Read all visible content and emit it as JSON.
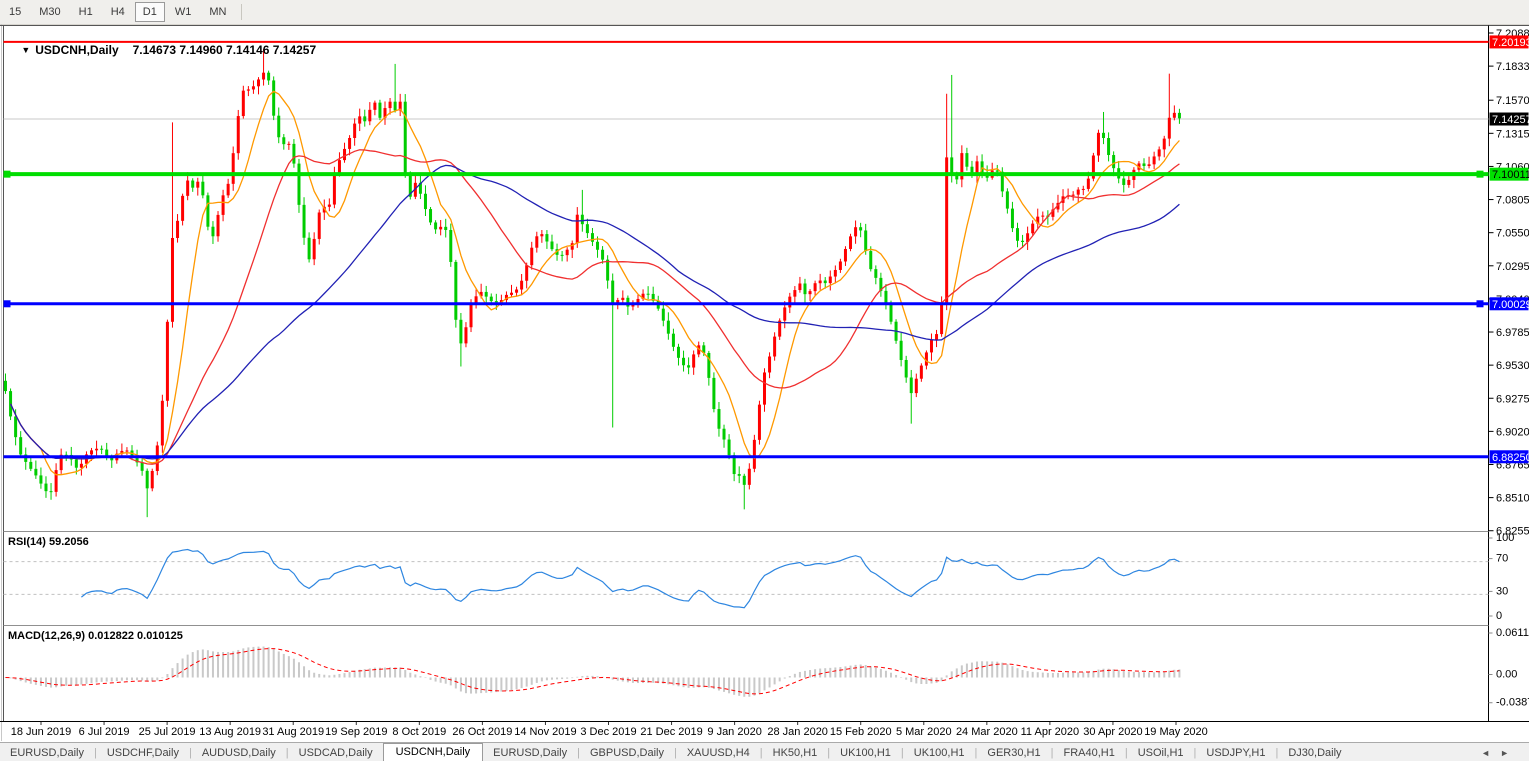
{
  "toolbar": {
    "timeframes": [
      "15",
      "M30",
      "H1",
      "H4",
      "D1",
      "W1",
      "MN"
    ],
    "active": "D1"
  },
  "chart": {
    "dropdown_icon": "▼",
    "symbol": "USDCNH,Daily",
    "ohlc_text": "7.14673 7.14960 7.14146 7.14257"
  },
  "rsi_panel": {
    "title": "RSI(14) 59.2056"
  },
  "macd_panel": {
    "title": "MACD(12,26,9) 0.012822 0.010125"
  },
  "chart_data": {
    "type": "candlestick",
    "symbol": "USDCNH",
    "timeframe": "Daily",
    "current_bar": {
      "open": 7.14673,
      "high": 7.1496,
      "low": 7.14146,
      "close": 7.14257
    },
    "colors": {
      "up": "#ff0000",
      "down": "#00cc00",
      "ma_fast": "#ff9900",
      "ma_mid": "#f03030",
      "ma_slow": "#2121b4",
      "rsi": "#2e86e0",
      "macd_hist": "#c9c9c9",
      "macd_signal": "#ff0000",
      "price_line": "#c8c8c8",
      "level_dash": "#c0c0c0"
    },
    "y_axis": {
      "ticks": [
        {
          "label": "7.20880",
          "value": 7.2088
        },
        {
          "label": "7.18330",
          "value": 7.1833
        },
        {
          "label": "7.15705",
          "value": 7.15705
        },
        {
          "label": "7.13155",
          "value": 7.13155
        },
        {
          "label": "7.10605",
          "value": 7.10605
        },
        {
          "label": "7.08055",
          "value": 7.08055
        },
        {
          "label": "7.05505",
          "value": 7.05505
        },
        {
          "label": "7.02955",
          "value": 7.02955
        },
        {
          "label": "7.00405",
          "value": 7.00405
        },
        {
          "label": "6.97855",
          "value": 6.97855
        },
        {
          "label": "6.95305",
          "value": 6.95305
        },
        {
          "label": "6.92755",
          "value": 6.92755
        },
        {
          "label": "6.90205",
          "value": 6.90205
        },
        {
          "label": "6.87655",
          "value": 6.87655
        },
        {
          "label": "6.85105",
          "value": 6.85105
        },
        {
          "label": "6.82555",
          "value": 6.82555
        }
      ]
    },
    "x_axis": {
      "ticks": [
        "18 Jun 2019",
        "6 Jul 2019",
        "25 Jul 2019",
        "13 Aug 2019",
        "31 Aug 2019",
        "19 Sep 2019",
        "8 Oct 2019",
        "26 Oct 2019",
        "14 Nov 2019",
        "3 Dec 2019",
        "21 Dec 2019",
        "9 Jan 2020",
        "28 Jan 2020",
        "15 Feb 2020",
        "5 Mar 2020",
        "24 Mar 2020",
        "11 Apr 2020",
        "30 Apr 2020",
        "19 May 2020"
      ]
    },
    "price_badges": [
      {
        "label": "7.20193",
        "value": 7.20193,
        "bg": "#ff0000",
        "fg": "#ffffff"
      },
      {
        "label": "7.14257",
        "value": 7.14257,
        "bg": "#000000",
        "fg": "#ffffff"
      },
      {
        "label": "7.10011",
        "value": 7.10011,
        "bg": "#00e000",
        "fg": "#000000"
      },
      {
        "label": "7.00029",
        "value": 7.00029,
        "bg": "#0000ff",
        "fg": "#ffffff"
      },
      {
        "label": "6.88250",
        "value": 6.8825,
        "bg": "#0000ff",
        "fg": "#ffffff"
      }
    ],
    "h_lines": [
      {
        "name": "resistance-line",
        "value": 7.20193,
        "color": "#ff0000",
        "width": 2,
        "handles": false
      },
      {
        "name": "support-line-green",
        "value": 7.10011,
        "color": "#00dd00",
        "width": 4,
        "handles": true
      },
      {
        "name": "support-line-blue-upper",
        "value": 7.00029,
        "color": "#0000ff",
        "width": 3,
        "handles": true
      },
      {
        "name": "support-line-blue-lower",
        "value": 6.8825,
        "color": "#0000ff",
        "width": 3,
        "handles": false
      }
    ],
    "last_price_line": 7.14257,
    "moving_averages": [
      {
        "name": "ma-fast",
        "period": 8
      },
      {
        "name": "ma-mid",
        "period": 25
      },
      {
        "name": "ma-slow",
        "period": 55
      }
    ],
    "rsi": {
      "period": 14,
      "value": 59.2056,
      "levels": [
        70,
        30
      ],
      "axis_labels": [
        {
          "label": "100",
          "value": 100
        },
        {
          "label": "70",
          "value": 70
        },
        {
          "label": "30",
          "value": 30
        },
        {
          "label": "0",
          "value": 0
        }
      ]
    },
    "macd": {
      "fast": 12,
      "slow": 26,
      "signal": 9,
      "value": 0.012822,
      "signal_value": 0.010125,
      "axis_labels": [
        {
          "label": "0.061119",
          "value": 0.061119
        },
        {
          "label": "0.00",
          "value": 0
        },
        {
          "label": "-0.03877",
          "value": -0.03877
        }
      ]
    },
    "price_path_anchors": [
      [
        5,
        6.935
      ],
      [
        12,
        6.908
      ],
      [
        20,
        6.885
      ],
      [
        28,
        6.876
      ],
      [
        36,
        6.868
      ],
      [
        44,
        6.858
      ],
      [
        50,
        6.852
      ],
      [
        56,
        6.872
      ],
      [
        62,
        6.886
      ],
      [
        70,
        6.882
      ],
      [
        78,
        6.872
      ],
      [
        86,
        6.884
      ],
      [
        94,
        6.889
      ],
      [
        102,
        6.888
      ],
      [
        110,
        6.878
      ],
      [
        118,
        6.886
      ],
      [
        126,
        6.888
      ],
      [
        134,
        6.882
      ],
      [
        142,
        6.872
      ],
      [
        148,
        6.856
      ],
      [
        154,
        6.878
      ],
      [
        160,
        6.902
      ],
      [
        166,
        6.962
      ],
      [
        171,
        7.048
      ],
      [
        176,
        7.058
      ],
      [
        182,
        7.082
      ],
      [
        188,
        7.096
      ],
      [
        194,
        7.088
      ],
      [
        200,
        7.098
      ],
      [
        206,
        7.068
      ],
      [
        211,
        7.046
      ],
      [
        216,
        7.062
      ],
      [
        222,
        7.082
      ],
      [
        228,
        7.092
      ],
      [
        234,
        7.12
      ],
      [
        240,
        7.155
      ],
      [
        246,
        7.172
      ],
      [
        251,
        7.158
      ],
      [
        256,
        7.178
      ],
      [
        261,
        7.168
      ],
      [
        266,
        7.188
      ],
      [
        271,
        7.158
      ],
      [
        276,
        7.134
      ],
      [
        282,
        7.122
      ],
      [
        288,
        7.126
      ],
      [
        294,
        7.108
      ],
      [
        300,
        7.07
      ],
      [
        306,
        7.042
      ],
      [
        311,
        7.03
      ],
      [
        316,
        7.062
      ],
      [
        322,
        7.078
      ],
      [
        328,
        7.07
      ],
      [
        334,
        7.1
      ],
      [
        340,
        7.112
      ],
      [
        346,
        7.122
      ],
      [
        352,
        7.132
      ],
      [
        358,
        7.148
      ],
      [
        363,
        7.138
      ],
      [
        368,
        7.146
      ],
      [
        374,
        7.158
      ],
      [
        379,
        7.142
      ],
      [
        384,
        7.15
      ],
      [
        390,
        7.156
      ],
      [
        395,
        7.149
      ],
      [
        400,
        7.158
      ],
      [
        405,
        7.1
      ],
      [
        410,
        7.082
      ],
      [
        415,
        7.094
      ],
      [
        420,
        7.086
      ],
      [
        426,
        7.072
      ],
      [
        432,
        7.06
      ],
      [
        438,
        7.056
      ],
      [
        444,
        7.064
      ],
      [
        450,
        7.04
      ],
      [
        455,
        6.992
      ],
      [
        460,
        6.968
      ],
      [
        465,
        6.978
      ],
      [
        470,
        7.0
      ],
      [
        476,
        7.006
      ],
      [
        482,
        7.01
      ],
      [
        488,
        7.004
      ],
      [
        494,
        7.001
      ],
      [
        500,
        7.002
      ],
      [
        506,
        7.007
      ],
      [
        512,
        7.009
      ],
      [
        518,
        7.012
      ],
      [
        524,
        7.022
      ],
      [
        530,
        7.04
      ],
      [
        536,
        7.052
      ],
      [
        542,
        7.054
      ],
      [
        548,
        7.047
      ],
      [
        554,
        7.04
      ],
      [
        560,
        7.036
      ],
      [
        566,
        7.041
      ],
      [
        572,
        7.046
      ],
      [
        578,
        7.072
      ],
      [
        583,
        7.06
      ],
      [
        588,
        7.054
      ],
      [
        594,
        7.046
      ],
      [
        600,
        7.039
      ],
      [
        606,
        7.028
      ],
      [
        611,
        6.998
      ],
      [
        616,
        7.002
      ],
      [
        622,
        7.006
      ],
      [
        628,
        6.998
      ],
      [
        634,
        7.0
      ],
      [
        640,
        7.006
      ],
      [
        646,
        7.01
      ],
      [
        652,
        7.004
      ],
      [
        658,
        6.997
      ],
      [
        664,
        6.986
      ],
      [
        670,
        6.974
      ],
      [
        676,
        6.962
      ],
      [
        682,
        6.954
      ],
      [
        688,
        6.95
      ],
      [
        694,
        6.962
      ],
      [
        700,
        6.97
      ],
      [
        706,
        6.958
      ],
      [
        711,
        6.932
      ],
      [
        716,
        6.91
      ],
      [
        721,
        6.9
      ],
      [
        726,
        6.893
      ],
      [
        731,
        6.878
      ],
      [
        736,
        6.864
      ],
      [
        741,
        6.87
      ],
      [
        746,
        6.856
      ],
      [
        751,
        6.882
      ],
      [
        756,
        6.902
      ],
      [
        761,
        6.932
      ],
      [
        766,
        6.954
      ],
      [
        771,
        6.962
      ],
      [
        776,
        6.98
      ],
      [
        782,
        6.992
      ],
      [
        788,
        7.004
      ],
      [
        794,
        7.01
      ],
      [
        800,
        7.016
      ],
      [
        806,
        7.006
      ],
      [
        812,
        7.012
      ],
      [
        818,
        7.02
      ],
      [
        824,
        7.015
      ],
      [
        830,
        7.021
      ],
      [
        836,
        7.027
      ],
      [
        842,
        7.035
      ],
      [
        848,
        7.048
      ],
      [
        854,
        7.058
      ],
      [
        859,
        7.062
      ],
      [
        864,
        7.046
      ],
      [
        870,
        7.028
      ],
      [
        876,
        7.02
      ],
      [
        882,
        7.008
      ],
      [
        888,
        6.995
      ],
      [
        894,
        6.978
      ],
      [
        900,
        6.96
      ],
      [
        906,
        6.944
      ],
      [
        911,
        6.931
      ],
      [
        916,
        6.942
      ],
      [
        921,
        6.952
      ],
      [
        926,
        6.962
      ],
      [
        931,
        6.972
      ],
      [
        936,
        6.976
      ],
      [
        941,
        6.985
      ],
      [
        946,
        7.115
      ],
      [
        951,
        7.1
      ],
      [
        956,
        7.092
      ],
      [
        961,
        7.118
      ],
      [
        966,
        7.108
      ],
      [
        971,
        7.096
      ],
      [
        976,
        7.112
      ],
      [
        981,
        7.102
      ],
      [
        986,
        7.096
      ],
      [
        991,
        7.102
      ],
      [
        996,
        7.106
      ],
      [
        1001,
        7.09
      ],
      [
        1006,
        7.078
      ],
      [
        1011,
        7.062
      ],
      [
        1016,
        7.05
      ],
      [
        1021,
        7.046
      ],
      [
        1026,
        7.052
      ],
      [
        1031,
        7.06
      ],
      [
        1036,
        7.066
      ],
      [
        1041,
        7.07
      ],
      [
        1046,
        7.065
      ],
      [
        1051,
        7.071
      ],
      [
        1056,
        7.076
      ],
      [
        1061,
        7.081
      ],
      [
        1066,
        7.086
      ],
      [
        1071,
        7.08
      ],
      [
        1076,
        7.09
      ],
      [
        1081,
        7.086
      ],
      [
        1086,
        7.092
      ],
      [
        1091,
        7.102
      ],
      [
        1096,
        7.128
      ],
      [
        1101,
        7.136
      ],
      [
        1106,
        7.12
      ],
      [
        1111,
        7.11
      ],
      [
        1116,
        7.1
      ],
      [
        1121,
        7.094
      ],
      [
        1126,
        7.09
      ],
      [
        1131,
        7.1
      ],
      [
        1136,
        7.106
      ],
      [
        1141,
        7.11
      ],
      [
        1146,
        7.104
      ],
      [
        1151,
        7.11
      ],
      [
        1156,
        7.116
      ],
      [
        1161,
        7.121
      ],
      [
        1166,
        7.131
      ],
      [
        1171,
        7.15
      ],
      [
        1176,
        7.146
      ],
      [
        1180,
        7.1426
      ]
    ],
    "spike_wicks": [
      [
        148,
        "l",
        6.836
      ],
      [
        175,
        "h",
        7.14
      ],
      [
        266,
        "h",
        7.1965
      ],
      [
        395,
        "h",
        7.185
      ],
      [
        460,
        "l",
        6.952
      ],
      [
        580,
        "h",
        7.088
      ],
      [
        611,
        "l",
        6.905
      ],
      [
        746,
        "l",
        6.842
      ],
      [
        911,
        "l",
        6.908
      ],
      [
        946,
        "h",
        7.162
      ],
      [
        951,
        "h",
        7.1765
      ],
      [
        1101,
        "h",
        7.148
      ],
      [
        1171,
        "h",
        7.1775
      ]
    ]
  },
  "tabs": {
    "items": [
      "EURUSD,Daily",
      "USDCHF,Daily",
      "AUDUSD,Daily",
      "USDCAD,Daily",
      "USDCNH,Daily",
      "EURUSD,Daily",
      "GBPUSD,Daily",
      "XAUUSD,H4",
      "HK50,H1",
      "UK100,H1",
      "UK100,H1",
      "GER30,H1",
      "FRA40,H1",
      "USOil,H1",
      "USDJPY,H1",
      "DJ30,Daily"
    ],
    "active_index": 4,
    "nav_left": "◄",
    "nav_right": "►"
  }
}
